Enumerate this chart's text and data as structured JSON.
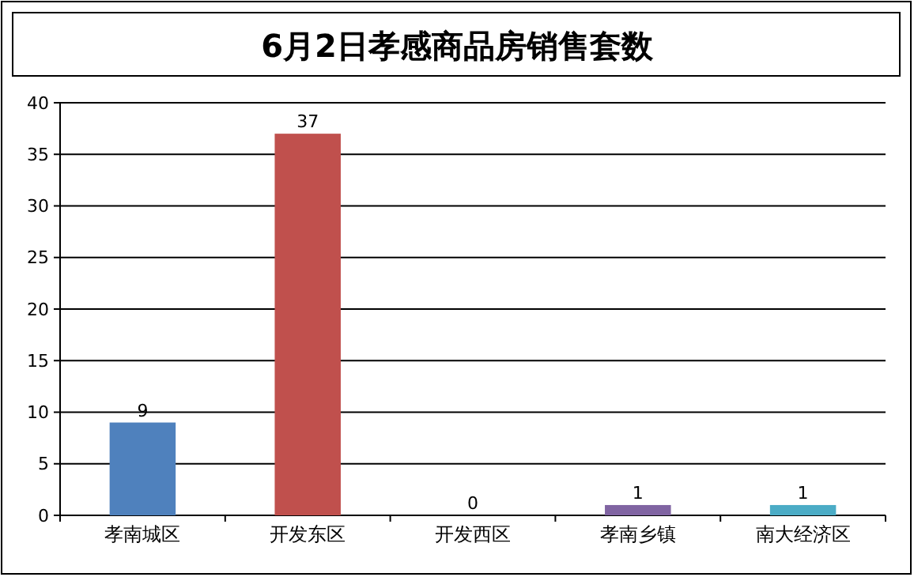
{
  "chart_data": {
    "type": "bar",
    "title": "6月2日孝感商品房销售套数",
    "categories": [
      "孝南城区",
      "开发东区",
      "开发西区",
      "孝南乡镇",
      "南大经济区"
    ],
    "values": [
      9,
      37,
      0,
      1,
      1
    ],
    "colors": [
      "#4f81bd",
      "#c0504d",
      "#9bbb59",
      "#8064a2",
      "#4bacc6"
    ],
    "ylim": [
      0,
      40
    ],
    "yticks": [
      0,
      5,
      10,
      15,
      20,
      25,
      30,
      35,
      40
    ],
    "grid": "y",
    "data_labels": true
  }
}
